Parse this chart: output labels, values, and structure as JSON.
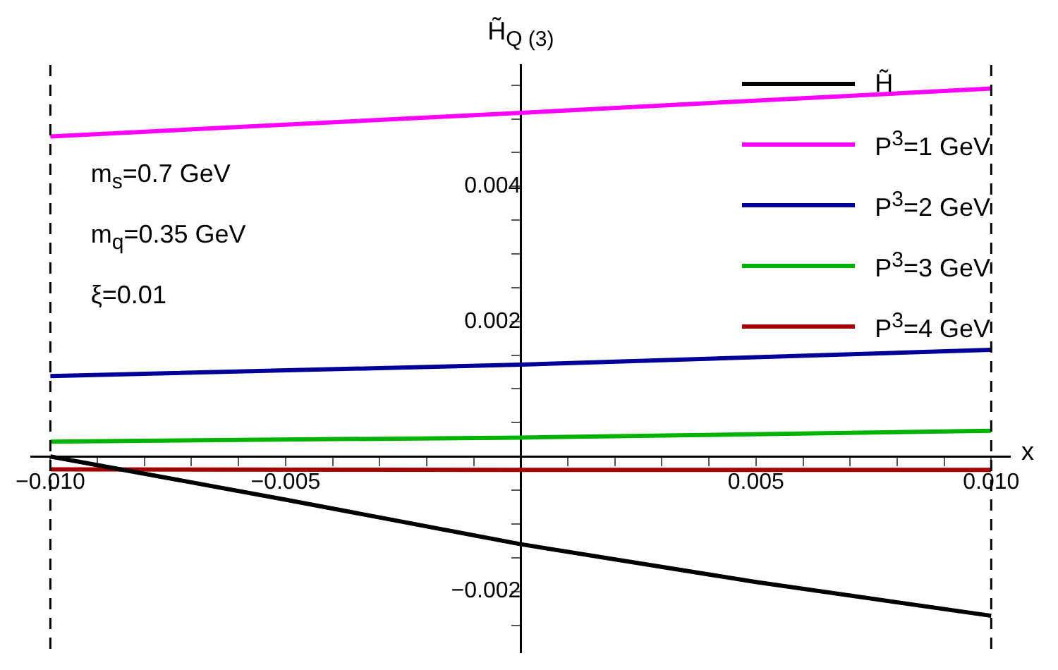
{
  "chart_data": {
    "type": "line",
    "ylabel": "H̃$_{Q (3)}$",
    "xlabel": "x",
    "xlim": [
      -0.0104,
      0.0104
    ],
    "ylim": [
      -0.0029,
      0.0058
    ],
    "xticks": [
      {
        "value": -0.01,
        "label": "−0.010"
      },
      {
        "value": -0.009,
        "label": null
      },
      {
        "value": -0.008,
        "label": null
      },
      {
        "value": -0.007,
        "label": null
      },
      {
        "value": -0.006,
        "label": null
      },
      {
        "value": -0.005,
        "label": "−0.005"
      },
      {
        "value": -0.004,
        "label": null
      },
      {
        "value": -0.003,
        "label": null
      },
      {
        "value": -0.002,
        "label": null
      },
      {
        "value": -0.001,
        "label": null
      },
      {
        "value": 0.001,
        "label": null
      },
      {
        "value": 0.002,
        "label": null
      },
      {
        "value": 0.003,
        "label": null
      },
      {
        "value": 0.004,
        "label": null
      },
      {
        "value": 0.005,
        "label": "0.005"
      },
      {
        "value": 0.006,
        "label": null
      },
      {
        "value": 0.007,
        "label": null
      },
      {
        "value": 0.008,
        "label": null
      },
      {
        "value": 0.009,
        "label": null
      },
      {
        "value": 0.01,
        "label": "0.010"
      }
    ],
    "yticks": [
      {
        "value": -0.0025,
        "label": null
      },
      {
        "value": -0.002,
        "label": "−0.002"
      },
      {
        "value": -0.0015,
        "label": null
      },
      {
        "value": -0.001,
        "label": null
      },
      {
        "value": -0.0005,
        "label": null
      },
      {
        "value": 0.0005,
        "label": null
      },
      {
        "value": 0.001,
        "label": null
      },
      {
        "value": 0.0015,
        "label": null
      },
      {
        "value": 0.002,
        "label": "0.002"
      },
      {
        "value": 0.0025,
        "label": null
      },
      {
        "value": 0.003,
        "label": null
      },
      {
        "value": 0.0035,
        "label": null
      },
      {
        "value": 0.004,
        "label": "0.004"
      },
      {
        "value": 0.0045,
        "label": null
      },
      {
        "value": 0.005,
        "label": null
      },
      {
        "value": 0.0055,
        "label": null
      }
    ],
    "grid": false,
    "legend": "top right",
    "marker": "none",
    "line_style": "solid",
    "series": [
      {
        "name": "H̃",
        "color": "#000000",
        "x": [
          -0.01,
          -0.005,
          0,
          0.005,
          0.01
        ],
        "values": [
          0,
          -0.00064,
          -0.0013,
          -0.00186,
          -0.00236
        ]
      },
      {
        "name": "P$^{3}$=1 GeV",
        "color": "#ff00ff",
        "x": [
          -0.01,
          0,
          0.01
        ],
        "values": [
          0.00474,
          0.00509,
          0.00545
        ]
      },
      {
        "name": "P$^{3}$=2 GeV",
        "color": "#000099",
        "x": [
          -0.01,
          0,
          0.01
        ],
        "values": [
          0.00119,
          0.00136,
          0.00158
        ]
      },
      {
        "name": "P$^{3}$=3 GeV",
        "color": "#00b300",
        "x": [
          -0.01,
          0,
          0.01
        ],
        "values": [
          0.00022,
          0.00028,
          0.00038
        ]
      },
      {
        "name": "P$^{3}$=4 GeV",
        "color": "#a30000",
        "x": [
          -0.01,
          0,
          0.01
        ],
        "values": [
          -0.00019,
          -0.0002,
          -0.0002
        ]
      }
    ],
    "ref_lines": [
      {
        "axis": "x",
        "value": -0.01,
        "color": "#000000",
        "line_style": "dashed"
      },
      {
        "axis": "x",
        "value": 0.01,
        "color": "#000000",
        "line_style": "dashed"
      }
    ],
    "annotations": [
      "m$_{s}$=0.7 GeV",
      "m$_{q}$=0.35 GeV",
      "ξ=0.01"
    ]
  }
}
